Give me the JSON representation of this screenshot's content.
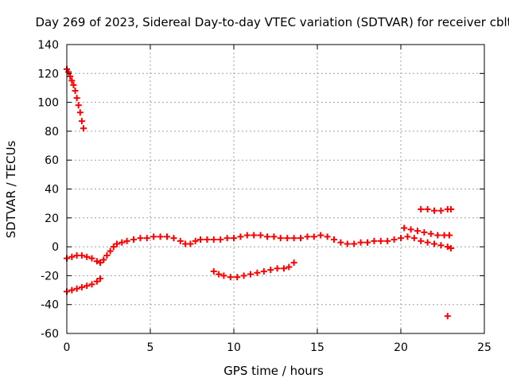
{
  "chart_data": {
    "type": "scatter",
    "title": "Day 269 of 2023, Sidereal Day-to-day VTEC variation (SDTVAR) for receiver cblt",
    "xlabel": "GPS time / hours",
    "ylabel": "SDTVAR / TECUs",
    "xlim": [
      0,
      25
    ],
    "ylim": [
      -60,
      140
    ],
    "xticks": [
      "0",
      "5",
      "10",
      "15",
      "20",
      "25"
    ],
    "yticks": [
      "140",
      "120",
      "100",
      "80",
      "60",
      "40",
      "20",
      "0",
      "-20",
      "-40",
      "-60"
    ],
    "grid": true,
    "legend": "none",
    "marker_color": "#ff0000",
    "series": [
      {
        "points": [
          [
            0.0,
            123
          ],
          [
            0.1,
            121
          ],
          [
            0.2,
            118
          ],
          [
            0.3,
            115
          ],
          [
            0.4,
            112
          ],
          [
            0.5,
            108
          ],
          [
            0.6,
            103
          ],
          [
            0.7,
            98
          ],
          [
            0.8,
            93
          ],
          [
            0.9,
            87
          ],
          [
            1.0,
            82
          ]
        ]
      },
      {
        "points": [
          [
            0.0,
            -8
          ],
          [
            0.3,
            -7
          ],
          [
            0.6,
            -6
          ],
          [
            0.9,
            -6
          ],
          [
            1.2,
            -7
          ],
          [
            1.5,
            -8
          ],
          [
            1.8,
            -10
          ],
          [
            2.0,
            -11
          ],
          [
            2.2,
            -9
          ],
          [
            2.4,
            -6
          ],
          [
            2.6,
            -3
          ],
          [
            2.8,
            0
          ],
          [
            3.0,
            2
          ],
          [
            3.3,
            3
          ],
          [
            3.6,
            4
          ],
          [
            4.0,
            5
          ],
          [
            4.4,
            6
          ],
          [
            4.8,
            6
          ],
          [
            5.2,
            7
          ],
          [
            5.6,
            7
          ],
          [
            6.0,
            7
          ],
          [
            6.4,
            6
          ],
          [
            6.8,
            4
          ],
          [
            7.1,
            2
          ],
          [
            7.4,
            2
          ],
          [
            7.7,
            4
          ],
          [
            8.0,
            5
          ],
          [
            8.4,
            5
          ],
          [
            8.8,
            5
          ],
          [
            9.2,
            5
          ],
          [
            9.6,
            6
          ],
          [
            10.0,
            6
          ],
          [
            10.4,
            7
          ],
          [
            10.8,
            8
          ],
          [
            11.2,
            8
          ],
          [
            11.6,
            8
          ],
          [
            12.0,
            7
          ],
          [
            12.4,
            7
          ],
          [
            12.8,
            6
          ],
          [
            13.2,
            6
          ],
          [
            13.6,
            6
          ],
          [
            14.0,
            6
          ],
          [
            14.4,
            7
          ],
          [
            14.8,
            7
          ],
          [
            15.2,
            8
          ],
          [
            15.6,
            7
          ],
          [
            16.0,
            5
          ],
          [
            16.4,
            3
          ],
          [
            16.8,
            2
          ],
          [
            17.2,
            2
          ],
          [
            17.6,
            3
          ],
          [
            18.0,
            3
          ],
          [
            18.4,
            4
          ],
          [
            18.8,
            4
          ],
          [
            19.2,
            4
          ],
          [
            19.6,
            5
          ],
          [
            20.0,
            6
          ],
          [
            20.4,
            7
          ],
          [
            20.8,
            6
          ],
          [
            21.2,
            4
          ],
          [
            21.6,
            3
          ],
          [
            22.0,
            2
          ],
          [
            22.4,
            1
          ],
          [
            22.8,
            0
          ],
          [
            23.0,
            -1
          ]
        ]
      },
      {
        "points": [
          [
            0.0,
            -31
          ],
          [
            0.3,
            -30
          ],
          [
            0.6,
            -29
          ],
          [
            0.9,
            -28
          ],
          [
            1.2,
            -27
          ],
          [
            1.5,
            -26
          ],
          [
            1.8,
            -24
          ],
          [
            2.0,
            -22
          ]
        ]
      },
      {
        "points": [
          [
            8.8,
            -17
          ],
          [
            9.1,
            -19
          ],
          [
            9.4,
            -20
          ],
          [
            9.8,
            -21
          ],
          [
            10.2,
            -21
          ],
          [
            10.6,
            -20
          ],
          [
            11.0,
            -19
          ],
          [
            11.4,
            -18
          ],
          [
            11.8,
            -17
          ],
          [
            12.2,
            -16
          ],
          [
            12.6,
            -15
          ],
          [
            13.0,
            -15
          ],
          [
            13.3,
            -14
          ],
          [
            13.6,
            -11
          ]
        ]
      },
      {
        "points": [
          [
            20.2,
            13
          ],
          [
            20.6,
            12
          ],
          [
            21.0,
            11
          ],
          [
            21.4,
            10
          ],
          [
            21.8,
            9
          ],
          [
            22.2,
            8
          ],
          [
            22.6,
            8
          ],
          [
            22.9,
            8
          ]
        ]
      },
      {
        "points": [
          [
            21.2,
            26
          ],
          [
            21.6,
            26
          ],
          [
            22.0,
            25
          ],
          [
            22.4,
            25
          ],
          [
            22.8,
            26
          ],
          [
            23.0,
            26
          ]
        ]
      },
      {
        "points": [
          [
            22.8,
            -48
          ]
        ]
      }
    ]
  }
}
